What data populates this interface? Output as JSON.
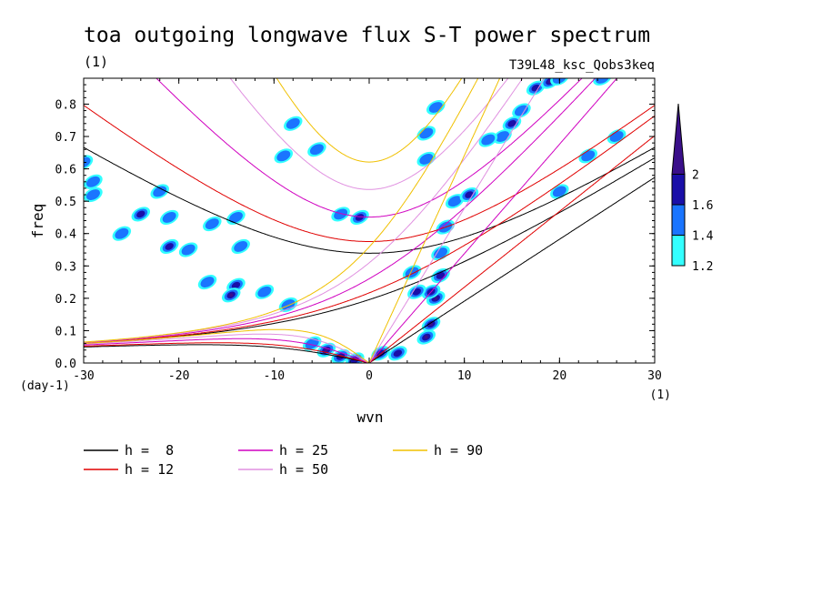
{
  "chart_data": {
    "type": "heatmap",
    "title": "toa outgoing longwave flux S-T power spectrum",
    "subtitle_left": "(1)",
    "subtitle_right": "T39L48_ksc_Qobs3keq",
    "xlabel": "wvn",
    "ylabel": "freq",
    "x_unit": "(1)",
    "y_unit": "(day-1)",
    "xlim": [
      -30,
      30
    ],
    "ylim": [
      0,
      0.88
    ],
    "x_ticks": [
      "-30",
      "-20",
      "-10",
      "0",
      "10",
      "20",
      "30"
    ],
    "y_ticks": [
      "0.0",
      "0.1",
      "0.2",
      "0.3",
      "0.4",
      "0.5",
      "0.6",
      "0.7",
      "0.8"
    ],
    "colorbar": {
      "levels": [
        "1.2",
        "1.4",
        "1.6",
        "2"
      ],
      "colors": [
        "#33ffff",
        "#1a75ff",
        "#1a0fa8",
        "#3a0f8a"
      ]
    },
    "series": [
      {
        "name": "h =  8",
        "equivalent_depth": 8,
        "color": "#000000"
      },
      {
        "name": "h = 12",
        "equivalent_depth": 12,
        "color": "#e00000"
      },
      {
        "name": "h = 25",
        "equivalent_depth": 25,
        "color": "#d000c0"
      },
      {
        "name": "h = 50",
        "equivalent_depth": 50,
        "color": "#e090e0"
      },
      {
        "name": "h = 90",
        "equivalent_depth": 90,
        "color": "#f0c000"
      }
    ],
    "power_blobs": [
      {
        "x": -4.5,
        "y": 0.04,
        "level": 3
      },
      {
        "x": -3,
        "y": 0.02,
        "level": 3
      },
      {
        "x": -1.5,
        "y": 0.01,
        "level": 2
      },
      {
        "x": -6,
        "y": 0.06,
        "level": 1
      },
      {
        "x": 1.2,
        "y": 0.03,
        "level": 2
      },
      {
        "x": 3,
        "y": 0.03,
        "level": 2
      },
      {
        "x": 6,
        "y": 0.08,
        "level": 3
      },
      {
        "x": 6.5,
        "y": 0.12,
        "level": 3
      },
      {
        "x": 7,
        "y": 0.2,
        "level": 3
      },
      {
        "x": 6.5,
        "y": 0.22,
        "level": 2
      },
      {
        "x": 7.5,
        "y": 0.27,
        "level": 2
      },
      {
        "x": 7.5,
        "y": 0.34,
        "level": 1
      },
      {
        "x": 8,
        "y": 0.42,
        "level": 1
      },
      {
        "x": 9,
        "y": 0.5,
        "level": 1
      },
      {
        "x": 10.5,
        "y": 0.52,
        "level": 2
      },
      {
        "x": 5,
        "y": 0.22,
        "level": 2
      },
      {
        "x": 4.5,
        "y": 0.28,
        "level": 1
      },
      {
        "x": 6,
        "y": 0.63,
        "level": 1
      },
      {
        "x": 6,
        "y": 0.71,
        "level": 1
      },
      {
        "x": 7,
        "y": 0.79,
        "level": 1
      },
      {
        "x": 14,
        "y": 0.7,
        "level": 1
      },
      {
        "x": 15,
        "y": 0.74,
        "level": 2
      },
      {
        "x": 16,
        "y": 0.78,
        "level": 1
      },
      {
        "x": 17.5,
        "y": 0.85,
        "level": 2
      },
      {
        "x": 19,
        "y": 0.87,
        "level": 3
      },
      {
        "x": 20,
        "y": 0.88,
        "level": 1
      },
      {
        "x": 12.5,
        "y": 0.69,
        "level": 1
      },
      {
        "x": 20,
        "y": 0.53,
        "level": 1
      },
      {
        "x": 23,
        "y": 0.64,
        "level": 1
      },
      {
        "x": 26,
        "y": 0.7,
        "level": 1
      },
      {
        "x": 24.5,
        "y": 0.88,
        "level": 1
      },
      {
        "x": -24,
        "y": 0.46,
        "level": 2
      },
      {
        "x": -21,
        "y": 0.45,
        "level": 1
      },
      {
        "x": -21,
        "y": 0.36,
        "level": 2
      },
      {
        "x": -19,
        "y": 0.35,
        "level": 1
      },
      {
        "x": -26,
        "y": 0.4,
        "level": 1
      },
      {
        "x": -29,
        "y": 0.56,
        "level": 1
      },
      {
        "x": -29,
        "y": 0.52,
        "level": 1
      },
      {
        "x": -16.5,
        "y": 0.43,
        "level": 1
      },
      {
        "x": -14,
        "y": 0.45,
        "level": 1
      },
      {
        "x": -17,
        "y": 0.25,
        "level": 1
      },
      {
        "x": -14,
        "y": 0.24,
        "level": 2
      },
      {
        "x": -11,
        "y": 0.22,
        "level": 1
      },
      {
        "x": -14.5,
        "y": 0.21,
        "level": 3
      },
      {
        "x": -8.5,
        "y": 0.18,
        "level": 1
      },
      {
        "x": -9,
        "y": 0.64,
        "level": 1
      },
      {
        "x": -8,
        "y": 0.74,
        "level": 1
      },
      {
        "x": -5.5,
        "y": 0.66,
        "level": 1
      },
      {
        "x": -1,
        "y": 0.45,
        "level": 2
      },
      {
        "x": -22,
        "y": 0.53,
        "level": 1
      },
      {
        "x": -30,
        "y": 0.62,
        "level": 1
      },
      {
        "x": -13.5,
        "y": 0.36,
        "level": 1
      },
      {
        "x": -3,
        "y": 0.46,
        "level": 1
      }
    ]
  }
}
